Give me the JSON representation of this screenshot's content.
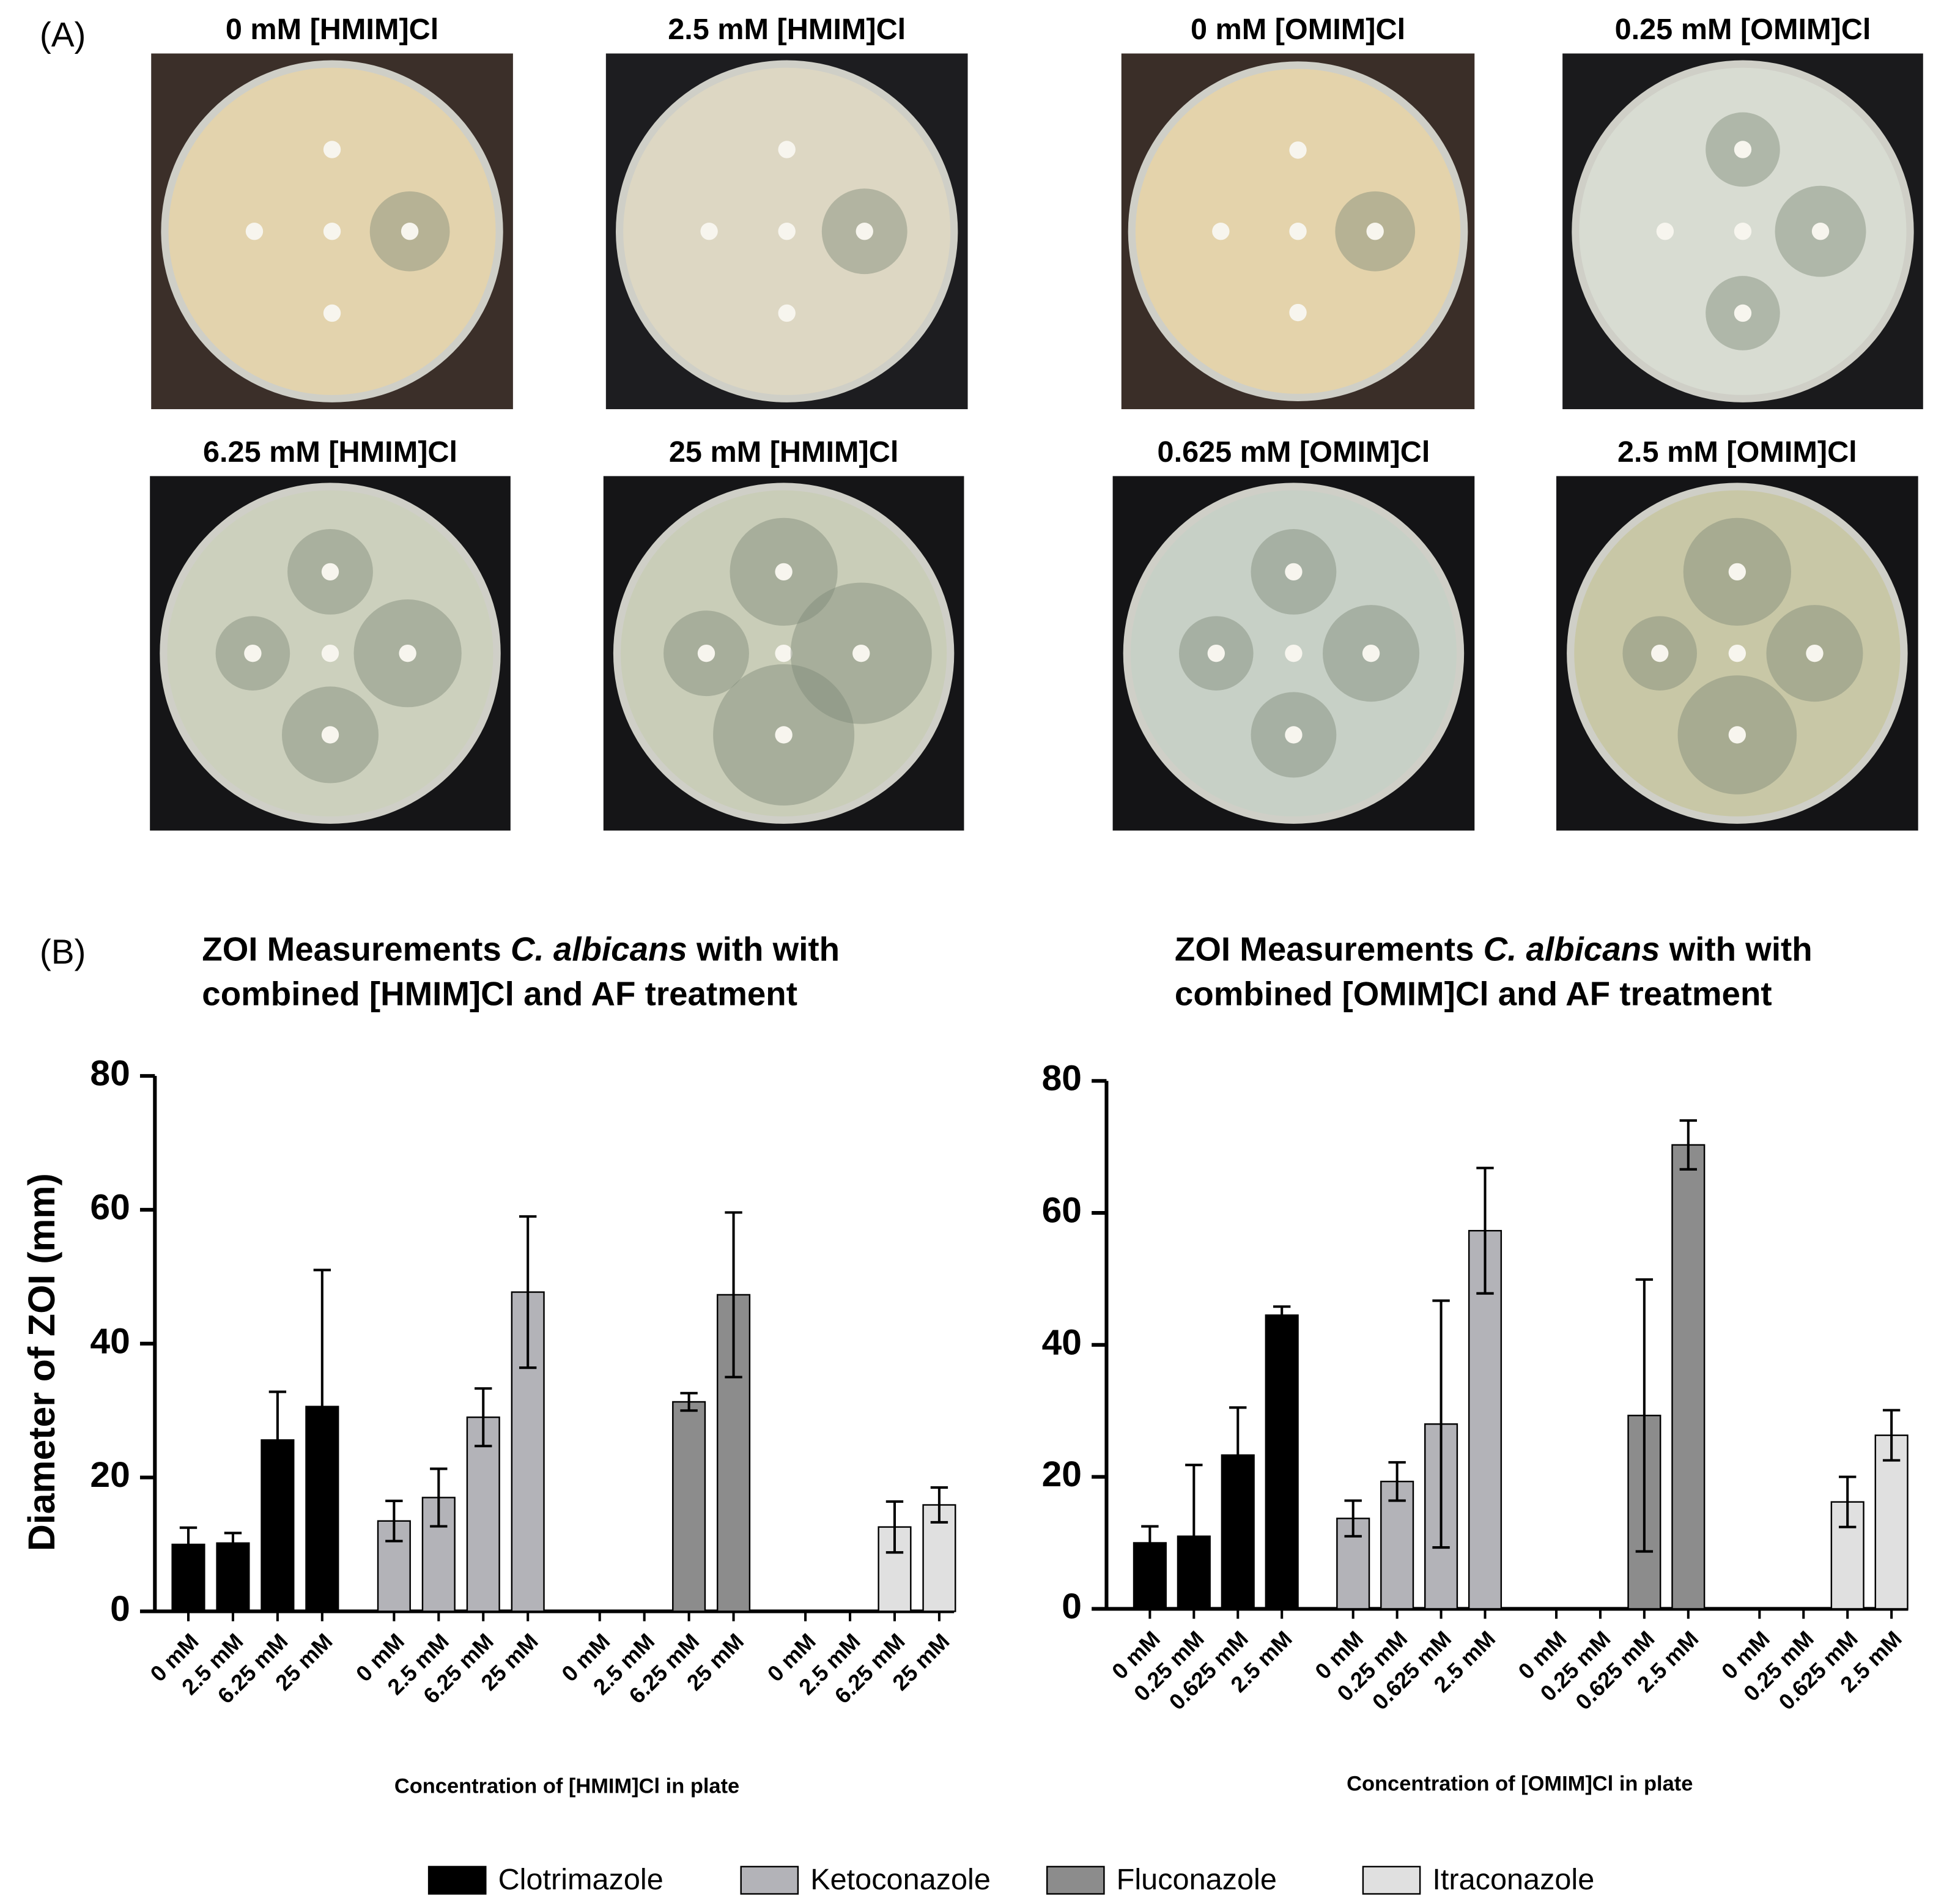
{
  "panel_labels": [
    "(A)",
    "(B)"
  ],
  "plates": [
    "0 mM [HMIM]Cl",
    "2.5 mM [HMIM]Cl",
    "0 mM [OMIM]Cl",
    "0.25 mM [OMIM]Cl",
    "6.25 mM [HMIM]Cl",
    "25 mM [HMIM]Cl",
    "0.625 mM [OMIM]Cl",
    "2.5 mM [OMIM]Cl"
  ],
  "chart_data": [
    {
      "type": "bar",
      "title": [
        "ZOI Measurements ",
        "C. albicans",
        " with with combined [HMIM]Cl and AF treatment"
      ],
      "y_label": "Diameter of ZOI (mm)",
      "x_label": "Concentration of [HMIM]Cl in plate",
      "categories": [
        "0 mM",
        "2.5 mM",
        "6.25 mM",
        "25 mM",
        "0 mM",
        "2.5 mM",
        "6.25 mM",
        "25 mM",
        "0 mM",
        "2.5 mM",
        "6.25 mM",
        "25 mM",
        "0 mM",
        "2.5 mM",
        "6.25 mM",
        "25 mM"
      ],
      "ylim": [
        0,
        80
      ],
      "yticks": [
        0,
        20,
        40,
        60,
        80
      ],
      "series": [
        {
          "name": "Clotrimazole",
          "color": "#000000",
          "values": [
            10,
            10.2,
            25.6,
            30.6,
            null,
            null,
            null,
            null,
            null,
            null,
            null,
            null,
            null,
            null,
            null,
            null
          ],
          "errors": [
            2.5,
            1.5,
            7.2,
            20.4,
            null,
            null,
            null,
            null,
            null,
            null,
            null,
            null,
            null,
            null,
            null,
            null
          ]
        },
        {
          "name": "Ketoconazole",
          "color": "#b3b3b8",
          "values": [
            null,
            null,
            null,
            null,
            13.5,
            17,
            29,
            47.7,
            null,
            null,
            null,
            null,
            null,
            null,
            null,
            null
          ],
          "errors": [
            null,
            null,
            null,
            null,
            3,
            4.3,
            4.3,
            11.3,
            null,
            null,
            null,
            null,
            null,
            null,
            null,
            null
          ]
        },
        {
          "name": "Fluconazole",
          "color": "#8c8c8c",
          "values": [
            null,
            null,
            null,
            null,
            null,
            null,
            null,
            null,
            0,
            0,
            31.3,
            47.3,
            null,
            null,
            null,
            null
          ],
          "errors": [
            null,
            null,
            null,
            null,
            null,
            null,
            null,
            null,
            null,
            null,
            1.3,
            12.3,
            null,
            null,
            null,
            null
          ]
        },
        {
          "name": "Itraconazole",
          "color": "#e0e0e0",
          "values": [
            null,
            null,
            null,
            null,
            null,
            null,
            null,
            null,
            null,
            null,
            null,
            null,
            0,
            0,
            12.6,
            15.9
          ],
          "errors": [
            null,
            null,
            null,
            null,
            null,
            null,
            null,
            null,
            null,
            null,
            null,
            null,
            null,
            null,
            3.8,
            2.6
          ]
        }
      ]
    },
    {
      "type": "bar",
      "title": [
        "ZOI Measurements ",
        "C. albicans",
        " with with combined [OMIM]Cl and AF treatment"
      ],
      "x_label": "Concentration of [OMIM]Cl in plate",
      "categories": [
        "0 mM",
        "0.25 mM",
        "0.625 mM",
        "2.5 mM",
        "0 mM",
        "0.25 mM",
        "0.625 mM",
        "2.5 mM",
        "0 mM",
        "0.25 mM",
        "0.625 mM",
        "2.5 mM",
        "0 mM",
        "0.25 mM",
        "0.625 mM",
        "2.5 mM"
      ],
      "ylim": [
        0,
        80
      ],
      "yticks": [
        0,
        20,
        40,
        60,
        80
      ],
      "series": [
        {
          "color": "#000000",
          "values": [
            10,
            11,
            23.3,
            44.5,
            null,
            null,
            null,
            null,
            null,
            null,
            null,
            null,
            null,
            null,
            null,
            null
          ],
          "errors": [
            2.5,
            10.8,
            7.2,
            1.3,
            null,
            null,
            null,
            null,
            null,
            null,
            null,
            null,
            null,
            null,
            null,
            null
          ]
        },
        {
          "color": "#b3b3b8",
          "values": [
            null,
            null,
            null,
            null,
            13.7,
            19.3,
            28,
            57.3,
            null,
            null,
            null,
            null,
            null,
            null,
            null,
            null
          ],
          "errors": [
            null,
            null,
            null,
            null,
            2.7,
            2.9,
            18.7,
            9.5,
            null,
            null,
            null,
            null,
            null,
            null,
            null,
            null
          ]
        },
        {
          "color": "#8c8c8c",
          "values": [
            null,
            null,
            null,
            null,
            null,
            null,
            null,
            null,
            0,
            0,
            29.3,
            70.3,
            null,
            null,
            null,
            null
          ],
          "errors": [
            null,
            null,
            null,
            null,
            null,
            null,
            null,
            null,
            null,
            null,
            20.6,
            3.7,
            null,
            null,
            null,
            null
          ]
        },
        {
          "color": "#e0e0e0",
          "values": [
            null,
            null,
            null,
            null,
            null,
            null,
            null,
            null,
            null,
            null,
            null,
            null,
            0,
            0,
            16.2,
            26.3
          ],
          "errors": [
            null,
            null,
            null,
            null,
            null,
            null,
            null,
            null,
            null,
            null,
            null,
            null,
            null,
            null,
            3.8,
            3.8
          ]
        }
      ]
    }
  ]
}
